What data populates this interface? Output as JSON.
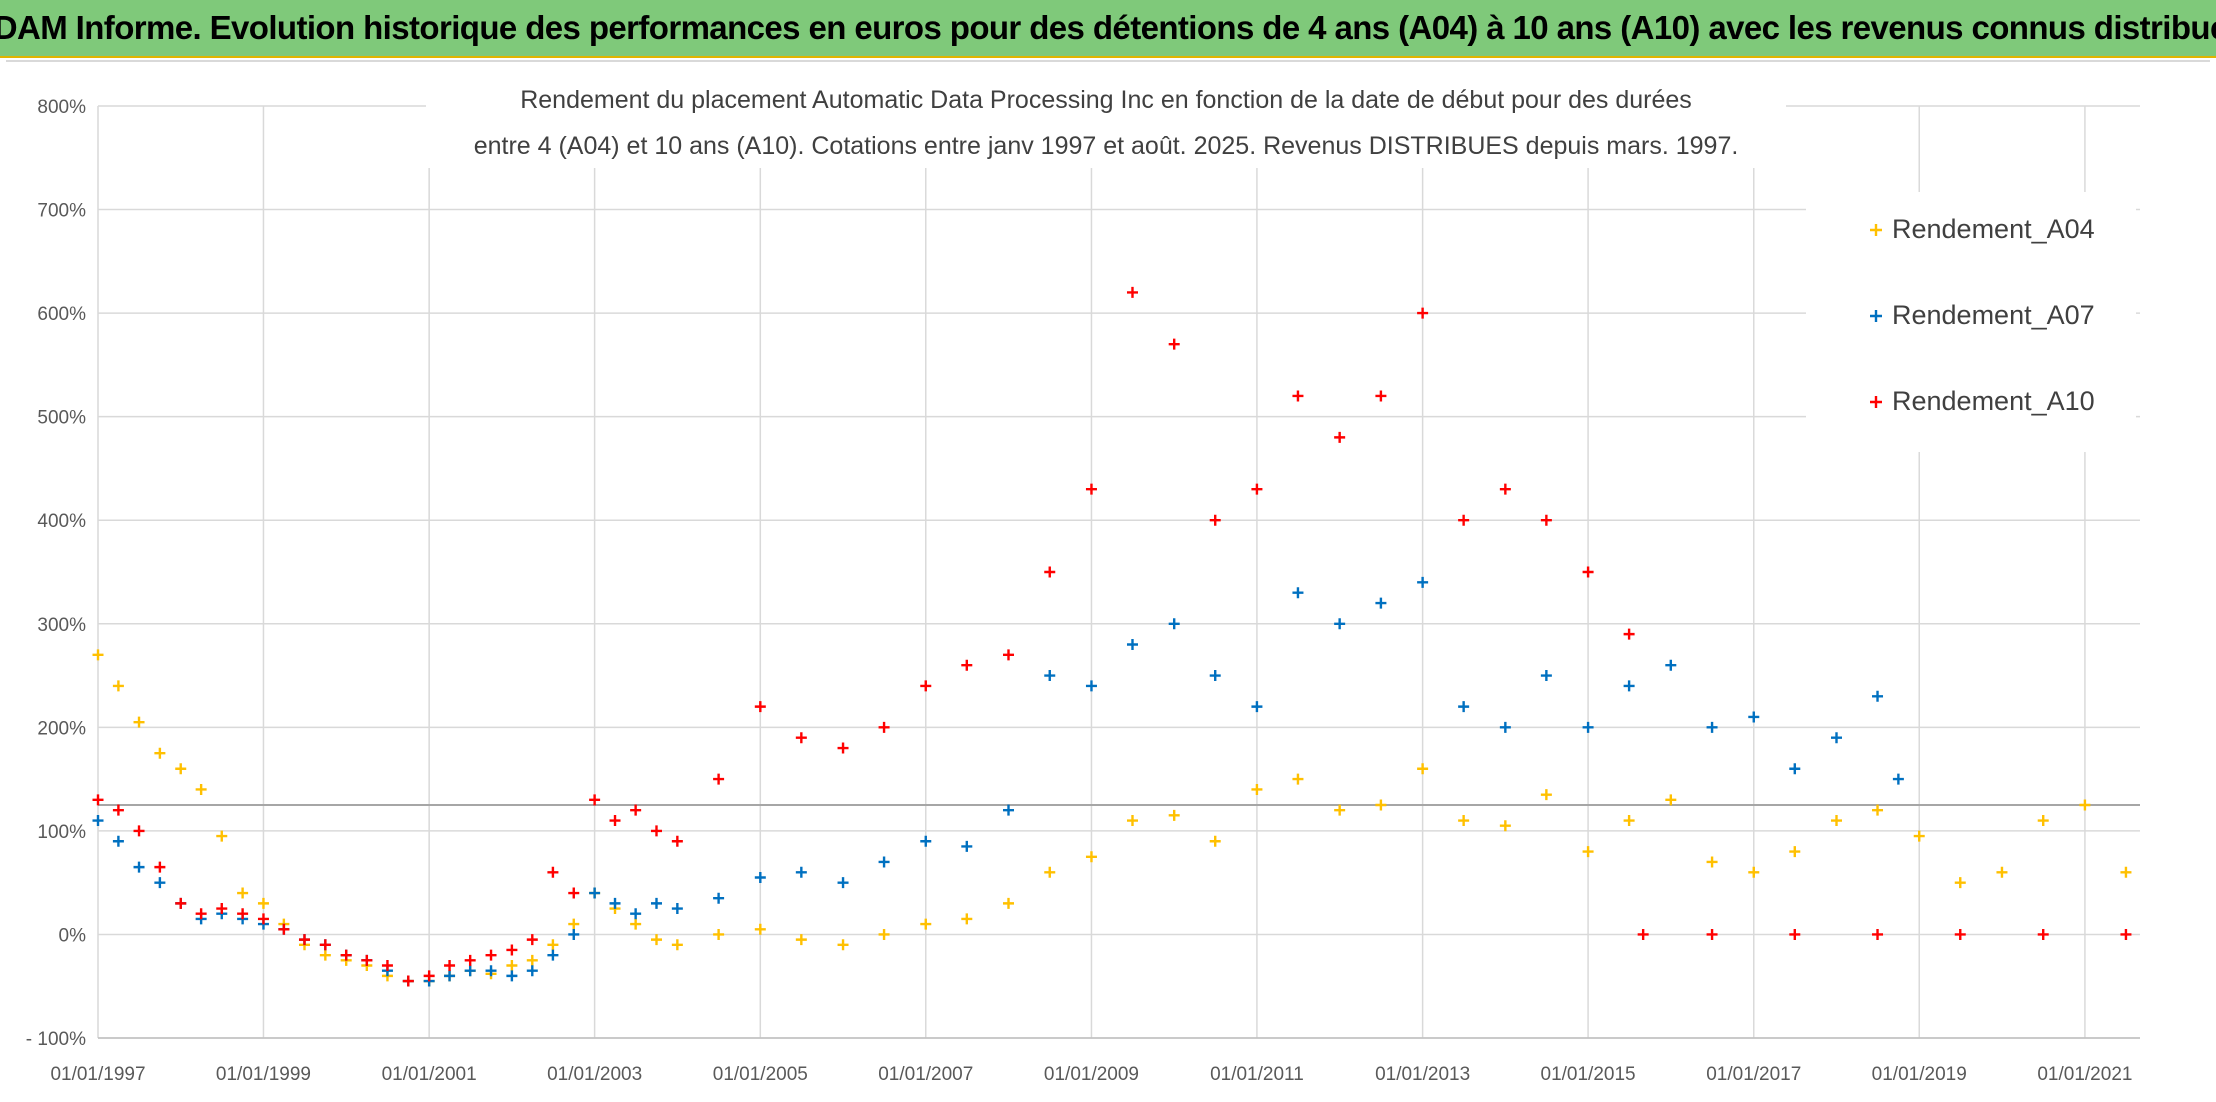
{
  "banner": {
    "title": "ADAM Informe. Evolution historique des performances en euros pour des détentions de 4 ans (A04) à 10 ans (A10) avec les revenus connus distribués"
  },
  "chart_data": {
    "type": "scatter",
    "title_lines": [
      "Rendement du placement Automatic Data Processing Inc en fonction de la date de début pour des durées",
      "entre 4 (A04) et 10 ans (A10). Cotations entre janv 1997 et août. 2025. Revenus DISTRIBUES depuis mars. 1997."
    ],
    "ylim": [
      -100,
      800
    ],
    "yticks": [
      800,
      700,
      600,
      500,
      400,
      300,
      200,
      100,
      0,
      -100
    ],
    "ytick_labels": [
      "800%",
      "700%",
      "600%",
      "500%",
      "400%",
      "300%",
      "200%",
      "100%",
      "0%",
      "- 100%"
    ],
    "xlim": [
      "1997-01-01",
      "2021-09-01"
    ],
    "xticks": [
      "1997-01-01",
      "1999-01-01",
      "2001-01-01",
      "2003-01-01",
      "2005-01-01",
      "2007-01-01",
      "2009-01-01",
      "2011-01-01",
      "2013-01-01",
      "2015-01-01",
      "2017-01-01",
      "2019-01-01",
      "2021-01-01"
    ],
    "xtick_labels": [
      "01/01/1997",
      "01/01/1999",
      "01/01/2001",
      "01/01/2003",
      "01/01/2005",
      "01/01/2007",
      "01/01/2009",
      "01/01/2011",
      "01/01/2013",
      "01/01/2015",
      "01/01/2017",
      "01/01/2019",
      "01/01/2021"
    ],
    "reference_line_y": 125,
    "grid": true,
    "legend_position": "top-right",
    "series": [
      {
        "name": "Rendement_A04",
        "color": "#ffc000",
        "points": [
          [
            "1997-01-01",
            270
          ],
          [
            "1997-04-01",
            240
          ],
          [
            "1997-07-01",
            205
          ],
          [
            "1997-10-01",
            175
          ],
          [
            "1998-01-01",
            160
          ],
          [
            "1998-04-01",
            140
          ],
          [
            "1998-07-01",
            95
          ],
          [
            "1998-10-01",
            40
          ],
          [
            "1999-01-01",
            30
          ],
          [
            "1999-04-01",
            10
          ],
          [
            "1999-07-01",
            -10
          ],
          [
            "1999-10-01",
            -20
          ],
          [
            "2000-01-01",
            -25
          ],
          [
            "2000-04-01",
            -30
          ],
          [
            "2000-07-01",
            -40
          ],
          [
            "2000-10-01",
            -45
          ],
          [
            "2001-01-01",
            -45
          ],
          [
            "2001-04-01",
            -40
          ],
          [
            "2001-07-01",
            -35
          ],
          [
            "2001-10-01",
            -38
          ],
          [
            "2002-01-01",
            -30
          ],
          [
            "2002-04-01",
            -25
          ],
          [
            "2002-07-01",
            -10
          ],
          [
            "2002-10-01",
            10
          ],
          [
            "2003-01-01",
            40
          ],
          [
            "2003-04-01",
            25
          ],
          [
            "2003-07-01",
            10
          ],
          [
            "2003-10-01",
            -5
          ],
          [
            "2004-01-01",
            -10
          ],
          [
            "2004-07-01",
            0
          ],
          [
            "2005-01-01",
            5
          ],
          [
            "2005-07-01",
            -5
          ],
          [
            "2006-01-01",
            -10
          ],
          [
            "2006-07-01",
            0
          ],
          [
            "2007-01-01",
            10
          ],
          [
            "2007-07-01",
            15
          ],
          [
            "2008-01-01",
            30
          ],
          [
            "2008-07-01",
            60
          ],
          [
            "2009-01-01",
            75
          ],
          [
            "2009-07-01",
            110
          ],
          [
            "2010-01-01",
            115
          ],
          [
            "2010-07-01",
            90
          ],
          [
            "2011-01-01",
            140
          ],
          [
            "2011-07-01",
            150
          ],
          [
            "2012-01-01",
            120
          ],
          [
            "2012-07-01",
            125
          ],
          [
            "2013-01-01",
            160
          ],
          [
            "2013-07-01",
            110
          ],
          [
            "2014-01-01",
            105
          ],
          [
            "2014-07-01",
            135
          ],
          [
            "2015-01-01",
            80
          ],
          [
            "2015-07-01",
            110
          ],
          [
            "2016-01-01",
            130
          ],
          [
            "2016-07-01",
            70
          ],
          [
            "2017-01-01",
            60
          ],
          [
            "2017-07-01",
            80
          ],
          [
            "2018-01-01",
            110
          ],
          [
            "2018-07-01",
            120
          ],
          [
            "2019-01-01",
            95
          ],
          [
            "2019-07-01",
            50
          ],
          [
            "2020-01-01",
            60
          ],
          [
            "2020-07-01",
            110
          ],
          [
            "2021-01-01",
            125
          ],
          [
            "2021-07-01",
            60
          ]
        ]
      },
      {
        "name": "Rendement_A07",
        "color": "#0070c0",
        "points": [
          [
            "1997-01-01",
            110
          ],
          [
            "1997-04-01",
            90
          ],
          [
            "1997-07-01",
            65
          ],
          [
            "1997-10-01",
            50
          ],
          [
            "1998-01-01",
            30
          ],
          [
            "1998-04-01",
            15
          ],
          [
            "1998-07-01",
            20
          ],
          [
            "1998-10-01",
            15
          ],
          [
            "1999-01-01",
            10
          ],
          [
            "1999-04-01",
            5
          ],
          [
            "1999-07-01",
            -5
          ],
          [
            "1999-10-01",
            -10
          ],
          [
            "2000-01-01",
            -20
          ],
          [
            "2000-04-01",
            -25
          ],
          [
            "2000-07-01",
            -35
          ],
          [
            "2000-10-01",
            -45
          ],
          [
            "2001-01-01",
            -45
          ],
          [
            "2001-04-01",
            -40
          ],
          [
            "2001-07-01",
            -35
          ],
          [
            "2001-10-01",
            -35
          ],
          [
            "2002-01-01",
            -40
          ],
          [
            "2002-04-01",
            -35
          ],
          [
            "2002-07-01",
            -20
          ],
          [
            "2002-10-01",
            0
          ],
          [
            "2003-01-01",
            40
          ],
          [
            "2003-04-01",
            30
          ],
          [
            "2003-07-01",
            20
          ],
          [
            "2003-10-01",
            30
          ],
          [
            "2004-01-01",
            25
          ],
          [
            "2004-07-01",
            35
          ],
          [
            "2005-01-01",
            55
          ],
          [
            "2005-07-01",
            60
          ],
          [
            "2006-01-01",
            50
          ],
          [
            "2006-07-01",
            70
          ],
          [
            "2007-01-01",
            90
          ],
          [
            "2007-07-01",
            85
          ],
          [
            "2008-01-01",
            120
          ],
          [
            "2008-07-01",
            250
          ],
          [
            "2009-01-01",
            240
          ],
          [
            "2009-07-01",
            280
          ],
          [
            "2010-01-01",
            300
          ],
          [
            "2010-07-01",
            250
          ],
          [
            "2011-01-01",
            220
          ],
          [
            "2011-07-01",
            330
          ],
          [
            "2012-01-01",
            300
          ],
          [
            "2012-07-01",
            320
          ],
          [
            "2013-01-01",
            340
          ],
          [
            "2013-07-01",
            220
          ],
          [
            "2014-01-01",
            200
          ],
          [
            "2014-07-01",
            250
          ],
          [
            "2015-01-01",
            200
          ],
          [
            "2015-07-01",
            240
          ],
          [
            "2016-01-01",
            260
          ],
          [
            "2016-07-01",
            200
          ],
          [
            "2017-01-01",
            210
          ],
          [
            "2017-07-01",
            160
          ],
          [
            "2018-01-01",
            190
          ],
          [
            "2018-07-01",
            230
          ],
          [
            "2018-10-01",
            150
          ]
        ]
      },
      {
        "name": "Rendement_A10",
        "color": "#ff0000",
        "points": [
          [
            "1997-01-01",
            130
          ],
          [
            "1997-04-01",
            120
          ],
          [
            "1997-07-01",
            100
          ],
          [
            "1997-10-01",
            65
          ],
          [
            "1998-01-01",
            30
          ],
          [
            "1998-04-01",
            20
          ],
          [
            "1998-07-01",
            25
          ],
          [
            "1998-10-01",
            20
          ],
          [
            "1999-01-01",
            15
          ],
          [
            "1999-04-01",
            5
          ],
          [
            "1999-07-01",
            -5
          ],
          [
            "1999-10-01",
            -10
          ],
          [
            "2000-01-01",
            -20
          ],
          [
            "2000-04-01",
            -25
          ],
          [
            "2000-07-01",
            -30
          ],
          [
            "2000-10-01",
            -45
          ],
          [
            "2001-01-01",
            -40
          ],
          [
            "2001-04-01",
            -30
          ],
          [
            "2001-07-01",
            -25
          ],
          [
            "2001-10-01",
            -20
          ],
          [
            "2002-01-01",
            -15
          ],
          [
            "2002-04-01",
            -5
          ],
          [
            "2002-07-01",
            60
          ],
          [
            "2002-10-01",
            40
          ],
          [
            "2003-01-01",
            130
          ],
          [
            "2003-04-01",
            110
          ],
          [
            "2003-07-01",
            120
          ],
          [
            "2003-10-01",
            100
          ],
          [
            "2004-01-01",
            90
          ],
          [
            "2004-07-01",
            150
          ],
          [
            "2005-01-01",
            220
          ],
          [
            "2005-07-01",
            190
          ],
          [
            "2006-01-01",
            180
          ],
          [
            "2006-07-01",
            200
          ],
          [
            "2007-01-01",
            240
          ],
          [
            "2007-07-01",
            260
          ],
          [
            "2008-01-01",
            270
          ],
          [
            "2008-07-01",
            350
          ],
          [
            "2009-01-01",
            430
          ],
          [
            "2009-07-01",
            620
          ],
          [
            "2010-01-01",
            570
          ],
          [
            "2010-07-01",
            400
          ],
          [
            "2011-01-01",
            430
          ],
          [
            "2011-07-01",
            520
          ],
          [
            "2012-01-01",
            480
          ],
          [
            "2012-07-01",
            520
          ],
          [
            "2013-01-01",
            600
          ],
          [
            "2013-07-01",
            400
          ],
          [
            "2014-01-01",
            430
          ],
          [
            "2014-07-01",
            400
          ],
          [
            "2015-01-01",
            350
          ],
          [
            "2015-07-01",
            290
          ],
          [
            "2015-09-01",
            0
          ],
          [
            "2016-07-01",
            0
          ],
          [
            "2017-07-01",
            0
          ],
          [
            "2018-07-01",
            0
          ],
          [
            "2019-07-01",
            0
          ],
          [
            "2020-07-01",
            0
          ],
          [
            "2021-07-01",
            0
          ]
        ]
      }
    ]
  }
}
